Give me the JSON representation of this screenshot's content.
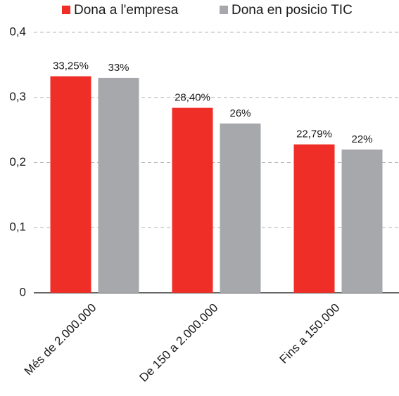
{
  "chart_data": {
    "type": "bar",
    "categories": [
      "Més de 2.000.000",
      "De 150 a 2.000.000",
      "Fins a 150.000"
    ],
    "series": [
      {
        "name": "Dona a l'empresa",
        "color": "#ee2e27",
        "values": [
          0.3325,
          0.284,
          0.2279
        ],
        "value_labels": [
          "33,25%",
          "28,40%",
          "22,79%"
        ]
      },
      {
        "name": "Dona en posicio TIC",
        "color": "#a7a8ab",
        "values": [
          0.33,
          0.26,
          0.22
        ],
        "value_labels": [
          "33%",
          "26%",
          "22%"
        ]
      }
    ],
    "ylim": [
      0,
      0.4
    ],
    "yticks": [
      0,
      {
        "value": 0.1,
        "label": "0,1"
      },
      {
        "value": 0.2,
        "label": "0,2"
      },
      {
        "value": 0.3,
        "label": "0,3"
      },
      {
        "value": 0.4,
        "label": "0,4"
      }
    ],
    "grid": true,
    "legend": "top"
  }
}
